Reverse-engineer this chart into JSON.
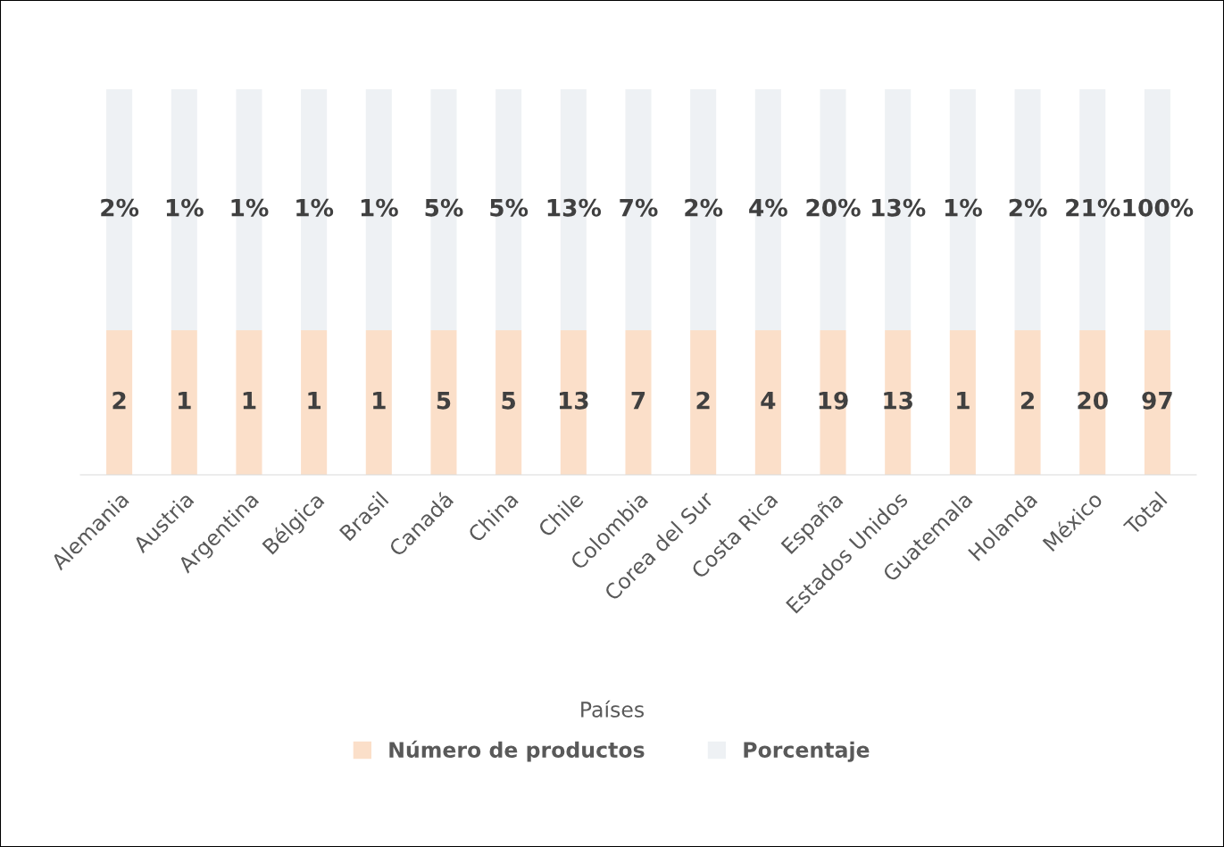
{
  "chart_data": {
    "type": "other",
    "xlabel": "Países",
    "legend": "bottom",
    "categories": [
      "Alemania",
      "Austria",
      "Argentina",
      "Bélgica",
      "Brasil",
      "Canadá",
      "China",
      "Chile",
      "Colombia",
      "Corea del Sur",
      "Costa Rica",
      "España",
      "Estados Unidos",
      "Guatemala",
      "Holanda",
      "México",
      "Total"
    ],
    "series": [
      {
        "name": "Número de productos",
        "color": "#fbdfc9",
        "values": [
          2,
          1,
          1,
          1,
          1,
          5,
          5,
          13,
          7,
          2,
          4,
          19,
          13,
          1,
          2,
          20,
          97
        ],
        "value_labels": [
          "2",
          "1",
          "1",
          "1",
          "1",
          "5",
          "5",
          "13",
          "7",
          "2",
          "4",
          "19",
          "13",
          "1",
          "2",
          "20",
          "97"
        ]
      },
      {
        "name": "Porcentaje",
        "color": "#eef1f4",
        "values": [
          2,
          1,
          1,
          1,
          1,
          5,
          5,
          13,
          7,
          2,
          4,
          20,
          13,
          1,
          2,
          21,
          100
        ],
        "value_labels": [
          "2%",
          "1%",
          "1%",
          "1%",
          "1%",
          "5%",
          "5%",
          "13%",
          "7%",
          "2%",
          "4%",
          "20%",
          "13%",
          "1%",
          "2%",
          "21%",
          "100%"
        ]
      }
    ]
  }
}
